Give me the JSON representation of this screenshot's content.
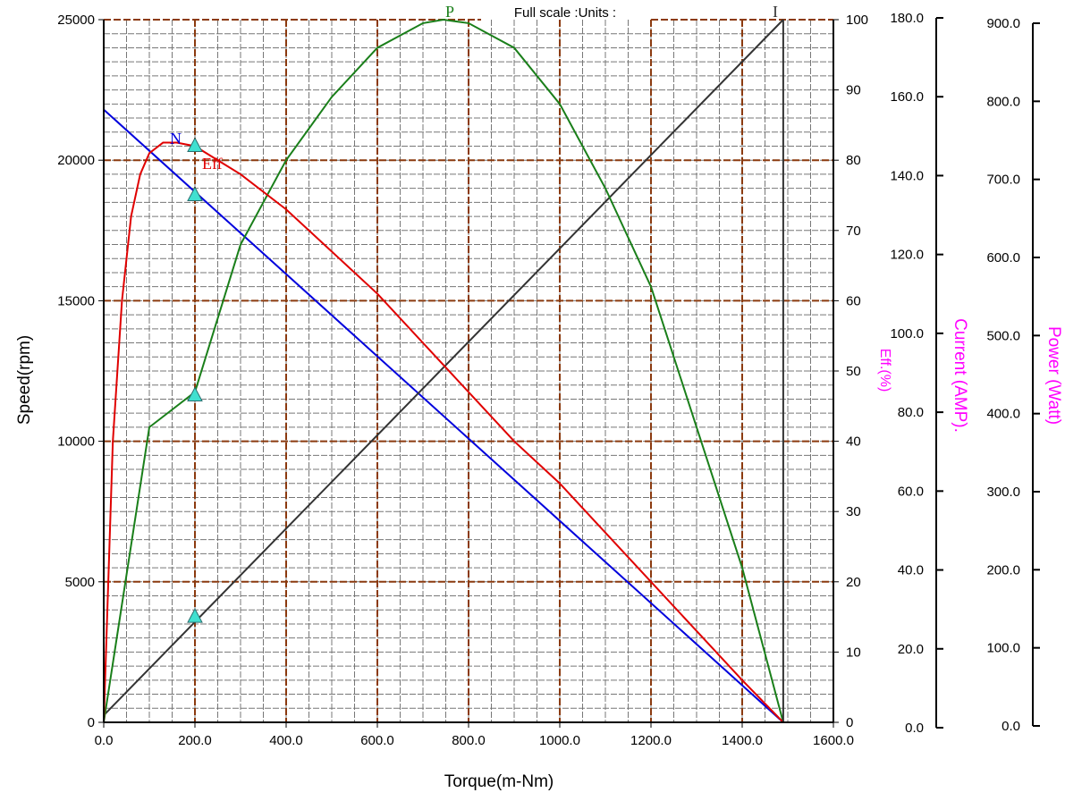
{
  "chart_data": {
    "type": "line",
    "title": "Full scale :Units :",
    "xlabel": "Torque(m-Nm)",
    "xlim": [
      0,
      1600
    ],
    "x_ticks": [
      "0.0",
      "200.0",
      "400.0",
      "600.0",
      "800.0",
      "1000.0",
      "1200.0",
      "1400.0",
      "1600.0"
    ],
    "y_axes": [
      {
        "label": "Speed(rpm)",
        "side": "left",
        "range": [
          0,
          25000
        ],
        "ticks": [
          "0",
          "5000",
          "10000",
          "15000",
          "20000",
          "25000"
        ]
      },
      {
        "label": "Eff.(%)",
        "side": "right",
        "range": [
          0,
          100
        ],
        "ticks": [
          "0",
          "10",
          "20",
          "30",
          "40",
          "50",
          "60",
          "70",
          "80",
          "90",
          "100"
        ]
      },
      {
        "label": "Current (AMP).",
        "side": "right",
        "range": [
          0,
          180
        ],
        "ticks": [
          "0.0",
          "20.0",
          "40.0",
          "60.0",
          "80.0",
          "100.0",
          "120.0",
          "140.0",
          "160.0",
          "180.0"
        ]
      },
      {
        "label": "Power (Watt)",
        "side": "right",
        "range": [
          0,
          900
        ],
        "ticks": [
          "0.0",
          "100.0",
          "200.0",
          "300.0",
          "400.0",
          "500.0",
          "600.0",
          "700.0",
          "800.0",
          "900.0"
        ]
      }
    ],
    "grid": true,
    "series": [
      {
        "name": "N",
        "color": "#0000dd",
        "x": [
          0,
          1490
        ],
        "y": [
          21800,
          0
        ],
        "axis": "speed"
      },
      {
        "name": "I",
        "color": "#333333",
        "x": [
          0,
          1490
        ],
        "y": [
          1.0,
          100
        ],
        "axis": "eff_scale"
      },
      {
        "name": "P",
        "color": "#1a7f1a",
        "x": [
          0,
          100,
          200,
          300,
          400,
          500,
          600,
          700,
          745,
          800,
          900,
          1000,
          1100,
          1200,
          1300,
          1400,
          1490
        ],
        "y": [
          0,
          42,
          47,
          68,
          80,
          89,
          96,
          99.5,
          100,
          99.5,
          96,
          88,
          76,
          62,
          42,
          22,
          0
        ],
        "axis": "eff_scale"
      },
      {
        "name": "Eff",
        "color": "#e00000",
        "x": [
          0,
          20,
          40,
          60,
          80,
          100,
          130,
          160,
          200,
          300,
          400,
          500,
          600,
          700,
          800,
          900,
          1000,
          1100,
          1200,
          1300,
          1400,
          1490
        ],
        "y": [
          0,
          40,
          60,
          72,
          78,
          81,
          82.5,
          82.5,
          82,
          78,
          73,
          67,
          61,
          54,
          47,
          40,
          34,
          27,
          20,
          13,
          6,
          0
        ],
        "axis": "eff"
      }
    ],
    "markers": {
      "x": 200,
      "values": [
        82,
        75,
        46.5,
        15
      ],
      "axis": "eff",
      "color": "#40e0d0"
    },
    "annotations": [
      "N",
      "Eff",
      "P",
      "I"
    ],
    "stall_torque": 1490
  }
}
